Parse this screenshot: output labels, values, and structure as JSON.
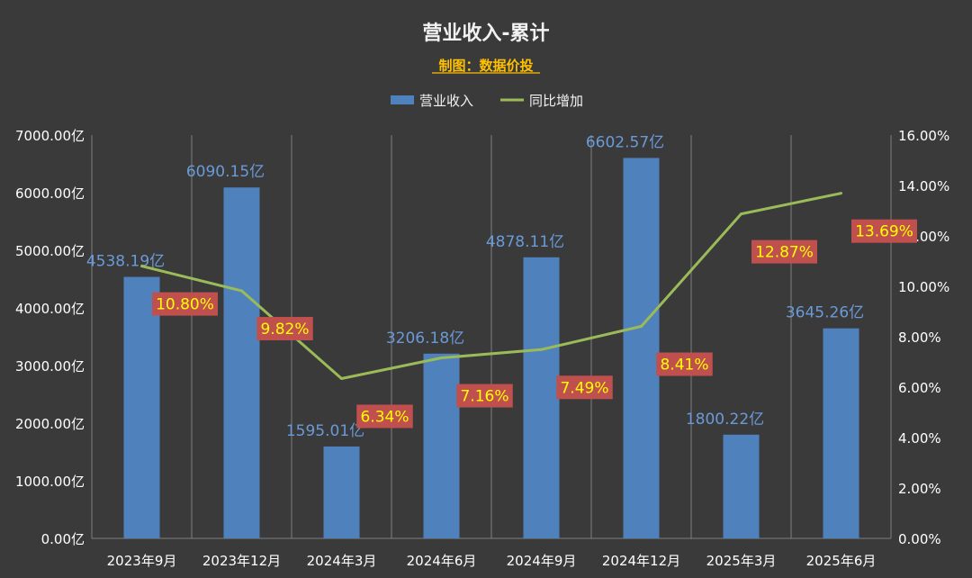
{
  "chart_data": {
    "type": "bar",
    "title": "营业收入-累计",
    "subtitle": "制图：数据价投",
    "categories": [
      "2023年9月",
      "2023年12月",
      "2024年3月",
      "2024年6月",
      "2024年9月",
      "2024年12月",
      "2025年3月",
      "2025年6月"
    ],
    "series": [
      {
        "name": "营业收入",
        "type": "bar",
        "axis": "left",
        "values": [
          4538.19,
          6090.15,
          1595.01,
          3206.18,
          4878.11,
          6602.57,
          1800.22,
          3645.26
        ],
        "labels": [
          "4538.19亿",
          "6090.15亿",
          "1595.01亿",
          "3206.18亿",
          "4878.11亿",
          "6602.57亿",
          "1800.22亿",
          "3645.26亿"
        ]
      },
      {
        "name": "同比增加",
        "type": "line",
        "axis": "right",
        "values": [
          10.8,
          9.82,
          6.34,
          7.16,
          7.49,
          8.41,
          12.87,
          13.69
        ],
        "labels": [
          "10.80%",
          "9.82%",
          "6.34%",
          "7.16%",
          "7.49%",
          "8.41%",
          "12.87%",
          "13.69%"
        ]
      }
    ],
    "left_axis": {
      "ylim": [
        0,
        7000
      ],
      "ticks": [
        "0.00亿",
        "1000.00亿",
        "2000.00亿",
        "3000.00亿",
        "4000.00亿",
        "5000.00亿",
        "6000.00亿",
        "7000.00亿"
      ]
    },
    "right_axis": {
      "ylim": [
        0,
        16
      ],
      "ticks": [
        "0.00%",
        "2.00%",
        "4.00%",
        "6.00%",
        "8.00%",
        "10.00%",
        "12.00%",
        "14.00%",
        "16.00%"
      ]
    },
    "grid": "vertical",
    "legend": "top-center",
    "colors": {
      "background": "#3a3a3a",
      "bar": "#4f81bd",
      "bar_label": "#6a9ad8",
      "line": "#9bbb59",
      "line_label_bg": "#c0504d",
      "line_label_text": "#ffff00",
      "grid": "#7f7f7f",
      "title": "#f2f2f2",
      "subtitle": "#ffc000"
    }
  }
}
